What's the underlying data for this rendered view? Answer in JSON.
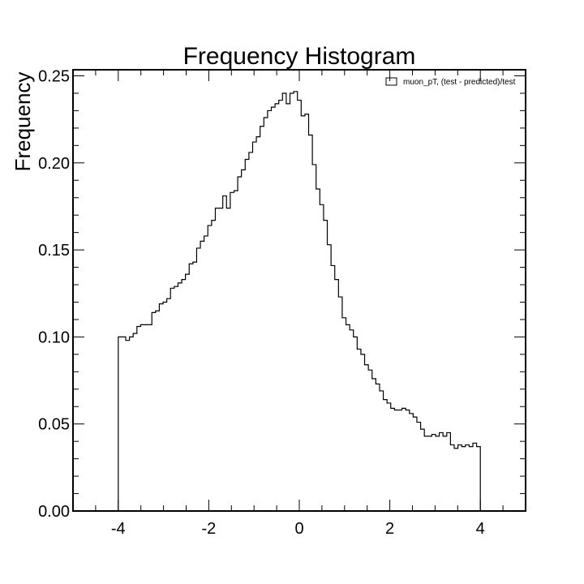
{
  "chart_data": {
    "type": "histogram",
    "title": "Frequency Histogram",
    "xlabel": "",
    "ylabel": "Frequency",
    "xlim": [
      -5,
      5
    ],
    "ylim": [
      0,
      0.2535
    ],
    "x_ticks": [
      -4,
      -2,
      0,
      2,
      4
    ],
    "x_tick_labels": [
      "-4",
      "-2",
      "0",
      "2",
      "4"
    ],
    "y_ticks": [
      0,
      0.05,
      0.1,
      0.15,
      0.2,
      0.25
    ],
    "y_tick_labels": [
      "0.00",
      "0.05",
      "0.10",
      "0.15",
      "0.20",
      "0.25"
    ],
    "grid": false,
    "legend_position": "top-right",
    "series": [
      {
        "name": "muon_pT, (test - predicted)/test",
        "style": "step",
        "color": "#000000",
        "bin_range": [
          -4,
          4
        ],
        "values": [
          0.1,
          0.1,
          0.098,
          0.1,
          0.102,
          0.106,
          0.107,
          0.107,
          0.107,
          0.114,
          0.115,
          0.119,
          0.12,
          0.122,
          0.128,
          0.129,
          0.131,
          0.133,
          0.136,
          0.142,
          0.143,
          0.151,
          0.155,
          0.158,
          0.164,
          0.167,
          0.174,
          0.174,
          0.181,
          0.174,
          0.183,
          0.184,
          0.192,
          0.196,
          0.202,
          0.206,
          0.212,
          0.215,
          0.221,
          0.226,
          0.23,
          0.232,
          0.234,
          0.236,
          0.24,
          0.234,
          0.24,
          0.241,
          0.236,
          0.227,
          0.228,
          0.216,
          0.199,
          0.185,
          0.176,
          0.167,
          0.153,
          0.141,
          0.133,
          0.123,
          0.111,
          0.107,
          0.104,
          0.1,
          0.093,
          0.09,
          0.084,
          0.081,
          0.076,
          0.073,
          0.069,
          0.064,
          0.062,
          0.059,
          0.058,
          0.058,
          0.059,
          0.058,
          0.056,
          0.054,
          0.051,
          0.047,
          0.043,
          0.043,
          0.044,
          0.043,
          0.045,
          0.043,
          0.045,
          0.038,
          0.036,
          0.038,
          0.037,
          0.038,
          0.037,
          0.039,
          0.037
        ]
      }
    ]
  }
}
